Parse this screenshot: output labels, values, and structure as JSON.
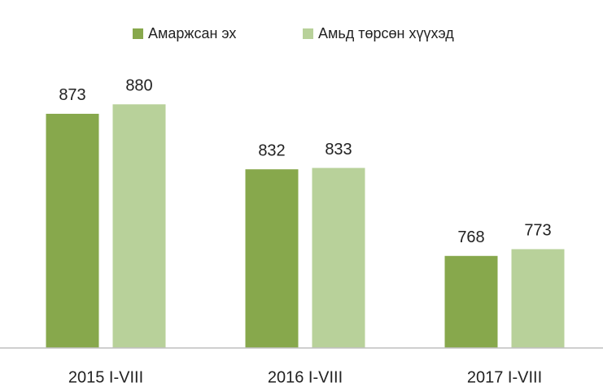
{
  "chart_data": {
    "type": "bar",
    "categories": [
      "2015 I-VIII",
      "2016 I-VIII",
      "2017 I-VIII"
    ],
    "series": [
      {
        "name": "Амаржсан эх",
        "color": "#87a84c",
        "values": [
          873,
          832,
          768
        ]
      },
      {
        "name": "Амьд төрсөн хүүхэд",
        "color": "#b8d19a",
        "values": [
          880,
          833,
          773
        ]
      }
    ],
    "ylim": [
      700,
      900
    ],
    "legend": "top"
  }
}
